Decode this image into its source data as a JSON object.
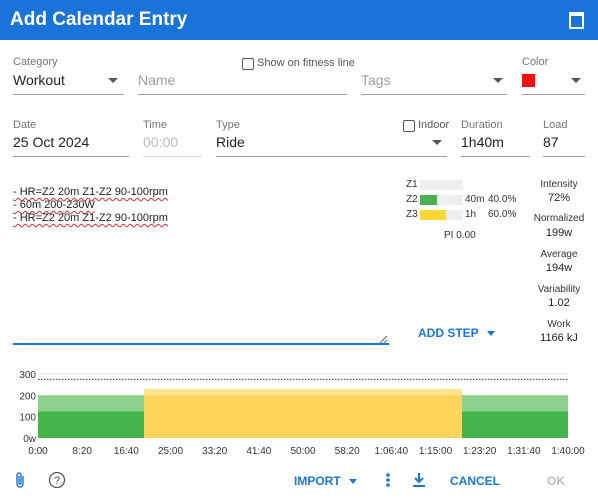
{
  "dialog": {
    "title": "Add Calendar Entry"
  },
  "fields": {
    "category": {
      "label": "Category",
      "value": "Workout"
    },
    "name": {
      "placeholder": "Name"
    },
    "show_fitness": {
      "label": "Show on fitness line",
      "checked": false
    },
    "tags": {
      "placeholder": "Tags"
    },
    "color": {
      "label": "Color",
      "value": "#ee1111"
    },
    "date": {
      "label": "Date",
      "value": "25 Oct 2024"
    },
    "time": {
      "label": "Time",
      "value": "00:00"
    },
    "type": {
      "label": "Type",
      "value": "Ride"
    },
    "indoor": {
      "label": "Indoor",
      "checked": false
    },
    "duration": {
      "label": "Duration",
      "value": "1h40m"
    },
    "load": {
      "label": "Load",
      "value": "87"
    }
  },
  "description": {
    "lines": [
      "- HR=Z2 20m Z1-Z2 90-100rpm",
      "- 60m 200-230W",
      "- HR=Z2 20m Z1-Z2 90-100rpm"
    ]
  },
  "zones": [
    {
      "name": "Z1",
      "time": "",
      "pct": "",
      "fraction": 0.0,
      "color": "#4caf50"
    },
    {
      "name": "Z2",
      "time": "40m",
      "pct": "40.0%",
      "fraction": 0.4,
      "color": "#4caf50"
    },
    {
      "name": "Z3",
      "time": "1h",
      "pct": "60.0%",
      "fraction": 0.6,
      "color": "#fdd835"
    }
  ],
  "pi": "PI 0.00",
  "stats": [
    {
      "label": "Intensity",
      "value": "72%"
    },
    {
      "label": "Normalized",
      "value": "199w"
    },
    {
      "label": "Average",
      "value": "194w"
    },
    {
      "label": "Variability",
      "value": "1.02"
    },
    {
      "label": "Work",
      "value": "1166 kJ"
    }
  ],
  "add_step": "ADD STEP",
  "chart_data": {
    "type": "area",
    "y_ticks": [
      "300",
      "200",
      "100",
      "0w"
    ],
    "x_ticks": [
      "0:00",
      "8:20",
      "16:40",
      "25:00",
      "33:20",
      "41:40",
      "50:00",
      "58:20",
      "1:06:40",
      "1:15:00",
      "1:23:20",
      "1:31:40",
      "1:40:00"
    ],
    "ylim": [
      0,
      300
    ],
    "xlim_min": [
      0,
      100
    ],
    "ftp_line_w": 275,
    "steps": [
      {
        "start_min": 0,
        "end_min": 20,
        "low_w": 125,
        "high_w": 200,
        "zone": "Z2"
      },
      {
        "start_min": 20,
        "end_min": 80,
        "low_w": 200,
        "high_w": 230,
        "zone": "Z3"
      },
      {
        "start_min": 80,
        "end_min": 100,
        "low_w": 125,
        "high_w": 200,
        "zone": "Z2"
      }
    ],
    "zone_colors": {
      "Z2_dark": "#43b54a",
      "Z2_light": "#8ed18f",
      "Z3_dark": "#fdd55a",
      "Z3_light": "#fde38a"
    }
  },
  "footer": {
    "import": "IMPORT",
    "download": "download-icon",
    "cancel": "CANCEL",
    "ok": "OK"
  }
}
